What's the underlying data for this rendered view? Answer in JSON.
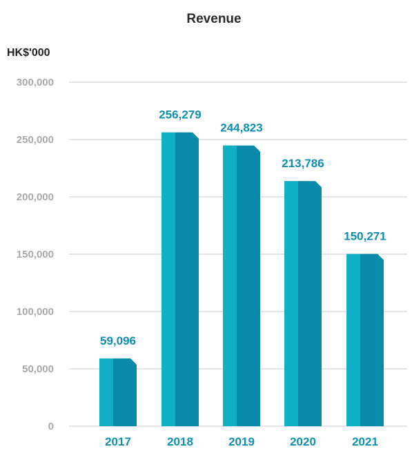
{
  "chart_data": {
    "type": "bar",
    "title": "Revenue",
    "ylabel": "HK$'000",
    "xlabel": "",
    "categories": [
      "2017",
      "2018",
      "2019",
      "2020",
      "2021"
    ],
    "values": [
      59096,
      256279,
      244823,
      213786,
      150271
    ],
    "data_labels": [
      "59,096",
      "256,279",
      "244,823",
      "213,786",
      "150,271"
    ],
    "ylim": [
      0,
      300000
    ],
    "yticks": [
      0,
      50000,
      100000,
      150000,
      200000,
      250000,
      300000
    ],
    "ytick_labels": [
      "0",
      "50,000",
      "100,000",
      "150,000",
      "200,000",
      "250,000",
      "300,000"
    ],
    "grid": true,
    "legend": "none",
    "colors": {
      "bar_light": "#0fb0c6",
      "bar_dark": "#0a8aab",
      "label": "#0f8fb0",
      "axis_text": "#a7a9ab",
      "gridline": "#c9cacc",
      "title": "#2b2b2b"
    }
  }
}
